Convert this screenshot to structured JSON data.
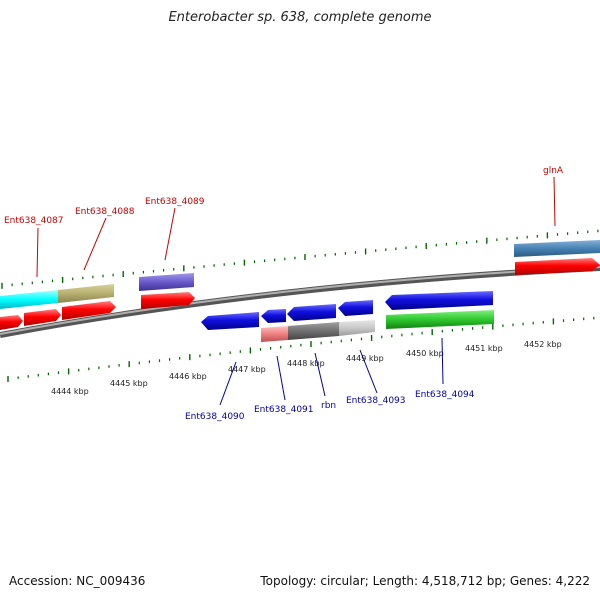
{
  "title": "Enterobacter sp. 638, complete genome",
  "footer": {
    "accession": "Accession: NC_009436",
    "topology": "Topology: circular; Length: 4,518,712 bp; Genes: 4,222"
  },
  "kbp_labels": [
    "4444 kbp",
    "4445 kbp",
    "4446 kbp",
    "4447 kbp",
    "4448 kbp",
    "4449 kbp",
    "4450 kbp",
    "4451 kbp",
    "4452 kbp"
  ],
  "upper_labels": [
    "Ent638_4087",
    "Ent638_4088",
    "Ent638_4089",
    "glnA"
  ],
  "lower_labels": [
    "Ent638_4090",
    "Ent638_4091",
    "rbn",
    "Ent638_4093",
    "Ent638_4094"
  ],
  "colors": {
    "upper_label": "#cc0000",
    "lower_label": "#0000aa",
    "tick": "#006600",
    "backbone": "#8c8c8c",
    "red_feature": "#ff0000",
    "blue_feature": "#1010e0"
  }
}
